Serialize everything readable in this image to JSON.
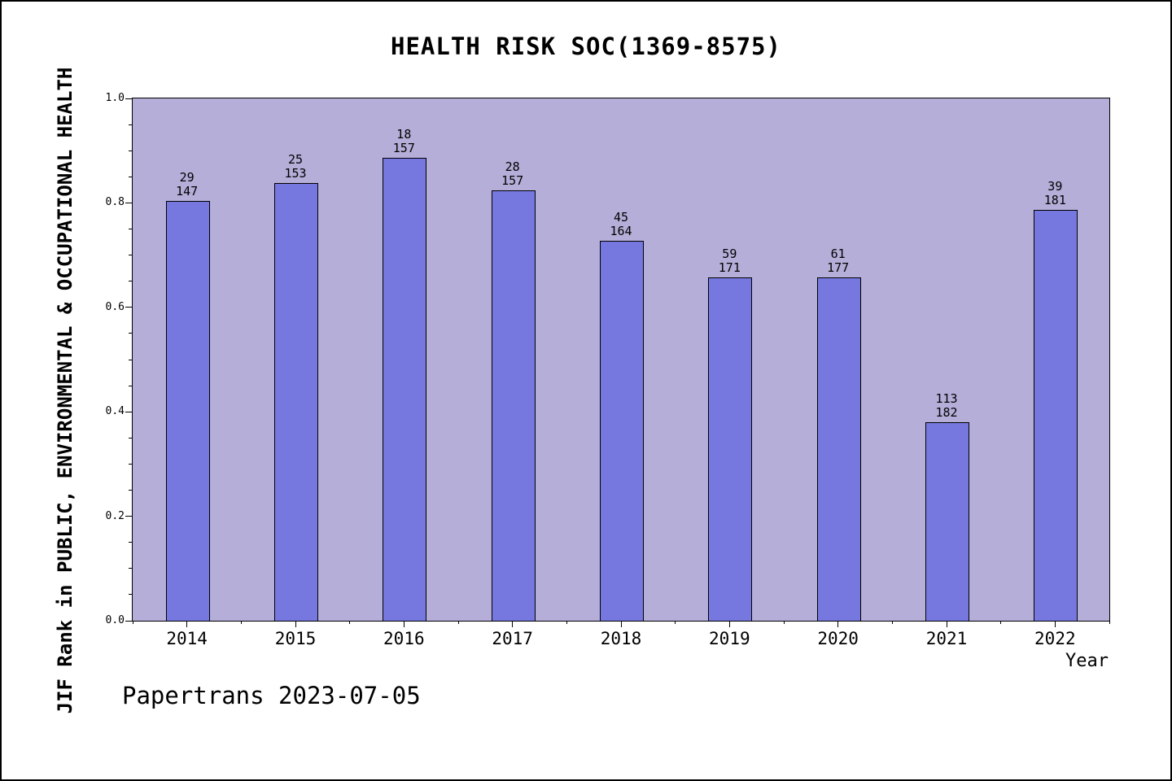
{
  "title": "HEALTH RISK SOC(1369-8575)",
  "ylabel": "JIF Rank in PUBLIC, ENVIRONMENTAL & OCCUPATIONAL HEALTH",
  "xlabel": "Year",
  "footer": "Papertrans 2023-07-05",
  "chart_data": {
    "type": "bar",
    "title": "HEALTH RISK SOC(1369-8575)",
    "xlabel": "Year",
    "ylabel": "JIF Rank in PUBLIC, ENVIRONMENTAL & OCCUPATIONAL HEALTH",
    "categories": [
      "2014",
      "2015",
      "2016",
      "2017",
      "2018",
      "2019",
      "2020",
      "2021",
      "2022"
    ],
    "series": [
      {
        "name": "rank",
        "values": [
          29,
          25,
          18,
          28,
          45,
          59,
          61,
          113,
          39
        ]
      },
      {
        "name": "total",
        "values": [
          147,
          153,
          157,
          157,
          164,
          171,
          177,
          182,
          181
        ]
      }
    ],
    "bar_values": [
      0.8027,
      0.8366,
      0.8854,
      0.8217,
      0.7256,
      0.655,
      0.6554,
      0.3791,
      0.7845
    ],
    "ylim": [
      0.0,
      1.0
    ],
    "yticks": [
      0.0,
      0.2,
      0.4,
      0.6,
      0.8,
      1.0
    ],
    "ytick_labels": [
      "0.0",
      "0.2",
      "0.4",
      "0.6",
      "0.8",
      "1.0"
    ],
    "grid": false,
    "legend": "none",
    "colors": {
      "bar": "#7678e0",
      "bar_border": "#000000",
      "plot_background": "#b4aed8",
      "text": "#000000"
    }
  }
}
